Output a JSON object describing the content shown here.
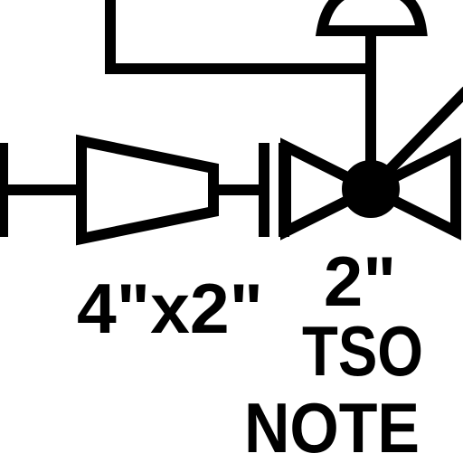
{
  "diagram": {
    "reducer_label": "4\"x2\"",
    "valve_size_label": "2\"",
    "valve_type_label": "TSO",
    "note_label": "NOTE",
    "colors": {
      "ink": "#000000",
      "background": "#ffffff"
    }
  }
}
